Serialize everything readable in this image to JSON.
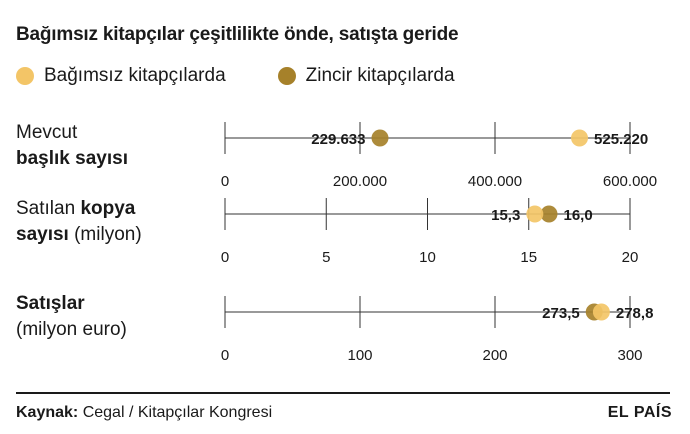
{
  "title": "Bağımsız kitapçılar çeşitlilikte önde, satışta geride",
  "legend": [
    {
      "label": "Bağımsız kitapçılarda",
      "color": "#f3c567"
    },
    {
      "label": "Zincir kitapçılarda",
      "color": "#a6812a"
    }
  ],
  "rows": [
    {
      "label_line1_normal": "Mevcut",
      "label_line1_bold": "",
      "label_line2_bold": "başlık sayısı",
      "label_line2_normal": ""
    },
    {
      "label_line1_normal": "Satılan ",
      "label_line1_bold": "kopya",
      "label_line2_bold": "sayısı",
      "label_line2_normal": " (milyon)"
    },
    {
      "label_line1_normal": "",
      "label_line1_bold": "Satışlar",
      "label_line2_bold": "",
      "label_line2_normal": "(milyon euro)"
    }
  ],
  "chart_data": {
    "type": "scatter",
    "series_colors": {
      "independent": "#f3c567",
      "chain": "#a6812a"
    },
    "panels": [
      {
        "axis": [
          0,
          600000
        ],
        "ticks": [
          0,
          200000,
          400000,
          600000
        ],
        "tick_labels": [
          "0",
          "200.000",
          "400.000",
          "600.000"
        ],
        "independent": 525220,
        "independent_label": "525.220",
        "chain": 229633,
        "chain_label": "229.633"
      },
      {
        "axis": [
          0,
          20
        ],
        "ticks": [
          0,
          5,
          10,
          15,
          20
        ],
        "tick_labels": [
          "0",
          "5",
          "10",
          "15",
          "20"
        ],
        "independent": 15.3,
        "independent_label": "15,3",
        "chain": 16.0,
        "chain_label": "16,0"
      },
      {
        "axis": [
          0,
          300
        ],
        "ticks": [
          0,
          100,
          200,
          300
        ],
        "tick_labels": [
          "0",
          "100",
          "200",
          "300"
        ],
        "independent": 278.8,
        "independent_label": "278,8",
        "chain": 273.5,
        "chain_label": "273,5"
      }
    ]
  },
  "footer": {
    "source_label": "Kaynak:",
    "source_text": " Cegal / Kitapçılar Kongresi",
    "brand": "EL PAÍS"
  }
}
